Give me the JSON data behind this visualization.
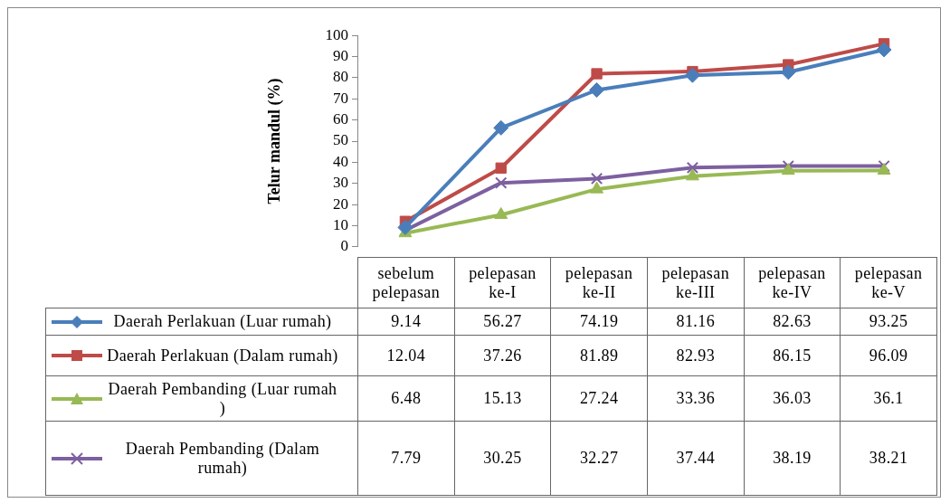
{
  "chart_data": {
    "type": "line",
    "ylabel": "Telur mandul (%)",
    "categories": [
      "sebelum pelepasan",
      "pelepasan ke-I",
      "pelepasan ke-II",
      "pelepasan ke-III",
      "pelepasan ke-IV",
      "pelepasan ke-V"
    ],
    "ylim": [
      0,
      100
    ],
    "yticks": [
      0,
      10,
      20,
      30,
      40,
      50,
      60,
      70,
      80,
      90,
      100
    ],
    "grid": false,
    "legend": "bottom",
    "data_labels": true,
    "line_style": "solid",
    "series": [
      {
        "name": "Daerah Perlakuan (Luar rumah)",
        "color": "#4a7ebb",
        "marker": "diamond",
        "values": [
          9.14,
          56.27,
          74.19,
          81.16,
          82.63,
          93.25
        ]
      },
      {
        "name": "Daerah Perlakuan (Dalam rumah)",
        "color": "#be4b48",
        "marker": "square",
        "values": [
          12.04,
          37.26,
          81.89,
          82.93,
          86.15,
          96.09
        ]
      },
      {
        "name": "Daerah Pembanding (Luar rumah )",
        "color": "#98b954",
        "marker": "triangle",
        "values": [
          6.48,
          15.13,
          27.24,
          33.36,
          36.03,
          36.1
        ]
      },
      {
        "name": "Daerah Pembanding (Dalam rumah)",
        "color": "#7d60a0",
        "marker": "cross",
        "values": [
          7.79,
          30.25,
          32.27,
          37.44,
          38.19,
          38.21
        ]
      }
    ]
  }
}
